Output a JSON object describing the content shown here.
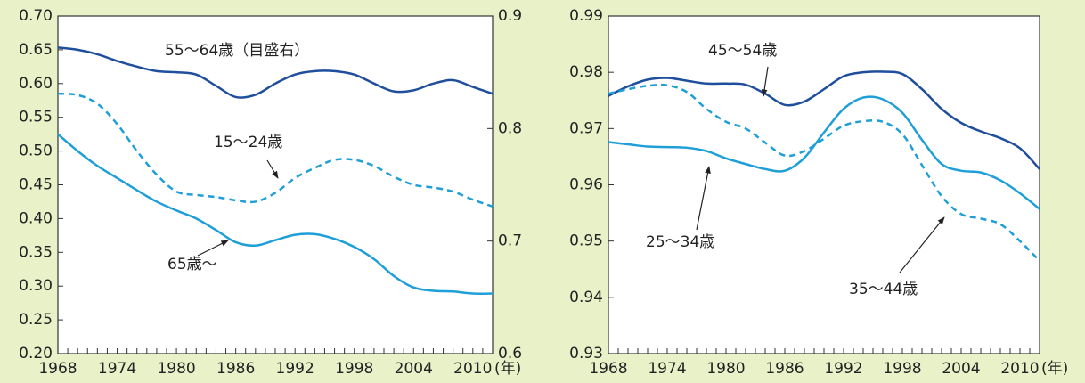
{
  "chart_data": [
    {
      "type": "line",
      "x": [
        1968,
        1970,
        1972,
        1974,
        1976,
        1978,
        1980,
        1982,
        1984,
        1986,
        1988,
        1990,
        1992,
        1994,
        1996,
        1998,
        2000,
        2002,
        2004,
        2006,
        2008,
        2010,
        2012
      ],
      "xlim": [
        1968,
        2012
      ],
      "xticks": [
        1968,
        1974,
        1980,
        1986,
        1992,
        1998,
        2004,
        2010
      ],
      "x_unit": "(年)",
      "xminorticks": [
        1968,
        1969,
        1970,
        1971,
        1972,
        1973,
        1974,
        1975,
        1976,
        1977,
        1978,
        1979,
        1980,
        1981,
        1982,
        1983,
        1984,
        1985,
        1986,
        1987,
        1988,
        1989,
        1990,
        1991,
        1992,
        1993,
        1994,
        1995,
        1996,
        1997,
        1998,
        1999,
        2000,
        2001,
        2002,
        2003,
        2004,
        2005,
        2006,
        2007,
        2008,
        2009,
        2010,
        2011,
        2012
      ],
      "ylim": [
        0.2,
        0.7
      ],
      "yticks": [
        {
          "value": 0.2,
          "label": "0.20"
        },
        0.25,
        {
          "value": 0.3,
          "label": "0.30"
        },
        0.35,
        {
          "value": 0.4,
          "label": "0.40"
        },
        0.45,
        {
          "value": 0.5,
          "label": "0.50"
        },
        0.55,
        {
          "value": 0.6,
          "label": "0.60"
        },
        0.65,
        {
          "value": 0.7,
          "label": "0.70"
        }
      ],
      "y2lim": [
        0.6,
        0.9
      ],
      "y2ticks": [
        0.6,
        0.7,
        0.8,
        0.9
      ],
      "series": [
        {
          "name": "55〜64歳（目盛右）",
          "color": "#1f4e9c",
          "dashed": false,
          "axis": "y2",
          "values": [
            0.872,
            0.87,
            0.866,
            0.86,
            0.855,
            0.851,
            0.85,
            0.848,
            0.838,
            0.828,
            0.83,
            0.84,
            0.848,
            0.851,
            0.851,
            0.848,
            0.84,
            0.833,
            0.834,
            0.84,
            0.843,
            0.837,
            0.831
          ]
        },
        {
          "name": "15〜24歳",
          "color": "#1f9fd8",
          "dashed": true,
          "values": [
            0.585,
            0.583,
            0.57,
            0.54,
            0.5,
            0.465,
            0.44,
            0.435,
            0.432,
            0.427,
            0.425,
            0.438,
            0.46,
            0.475,
            0.487,
            0.487,
            0.478,
            0.462,
            0.45,
            0.446,
            0.44,
            0.428,
            0.418
          ]
        },
        {
          "name": "65歳〜",
          "color": "#1f9fd8",
          "dashed": false,
          "values": [
            0.525,
            0.5,
            0.478,
            0.46,
            0.442,
            0.425,
            0.412,
            0.4,
            0.383,
            0.365,
            0.36,
            0.368,
            0.376,
            0.377,
            0.37,
            0.358,
            0.34,
            0.315,
            0.298,
            0.293,
            0.292,
            0.289,
            0.289
          ]
        }
      ]
    },
    {
      "type": "line",
      "x": [
        1968,
        1970,
        1972,
        1974,
        1976,
        1978,
        1980,
        1982,
        1984,
        1986,
        1988,
        1990,
        1992,
        1994,
        1996,
        1998,
        2000,
        2002,
        2004,
        2006,
        2008,
        2010,
        2012
      ],
      "xlim": [
        1968,
        2012
      ],
      "xticks": [
        1968,
        1974,
        1980,
        1986,
        1992,
        1998,
        2004,
        2010
      ],
      "x_unit": "(年)",
      "xminorticks": [
        1968,
        1969,
        1970,
        1971,
        1972,
        1973,
        1974,
        1975,
        1976,
        1977,
        1978,
        1979,
        1980,
        1981,
        1982,
        1983,
        1984,
        1985,
        1986,
        1987,
        1988,
        1989,
        1990,
        1991,
        1992,
        1993,
        1994,
        1995,
        1996,
        1997,
        1998,
        1999,
        2000,
        2001,
        2002,
        2003,
        2004,
        2005,
        2006,
        2007,
        2008,
        2009,
        2010,
        2011,
        2012
      ],
      "ylim": [
        0.93,
        0.99
      ],
      "yticks": [
        0.93,
        0.94,
        0.95,
        0.96,
        0.97,
        0.98,
        0.99
      ],
      "series": [
        {
          "name": "45〜54歳",
          "color": "#1f4e9c",
          "dashed": false,
          "values": [
            0.9758,
            0.9775,
            0.9787,
            0.979,
            0.9785,
            0.978,
            0.978,
            0.9778,
            0.9762,
            0.9742,
            0.9748,
            0.977,
            0.9793,
            0.98,
            0.9801,
            0.9797,
            0.977,
            0.9735,
            0.971,
            0.9695,
            0.9683,
            0.9665,
            0.9628
          ]
        },
        {
          "name": "25〜34歳",
          "color": "#1f9fd8",
          "dashed": false,
          "values": [
            0.9676,
            0.9672,
            0.9668,
            0.9667,
            0.9666,
            0.966,
            0.9647,
            0.9637,
            0.9628,
            0.9625,
            0.9648,
            0.9693,
            0.9735,
            0.9755,
            0.9752,
            0.9728,
            0.968,
            0.9637,
            0.9625,
            0.9622,
            0.9608,
            0.9585,
            0.9557
          ]
        },
        {
          "name": "35〜44歳",
          "color": "#1f9fd8",
          "dashed": true,
          "values": [
            0.9762,
            0.977,
            0.9776,
            0.9777,
            0.9765,
            0.9735,
            0.9712,
            0.97,
            0.9675,
            0.9652,
            0.966,
            0.9682,
            0.9705,
            0.9713,
            0.9712,
            0.969,
            0.9635,
            0.958,
            0.9548,
            0.954,
            0.953,
            0.95,
            0.9465
          ]
        }
      ]
    }
  ]
}
